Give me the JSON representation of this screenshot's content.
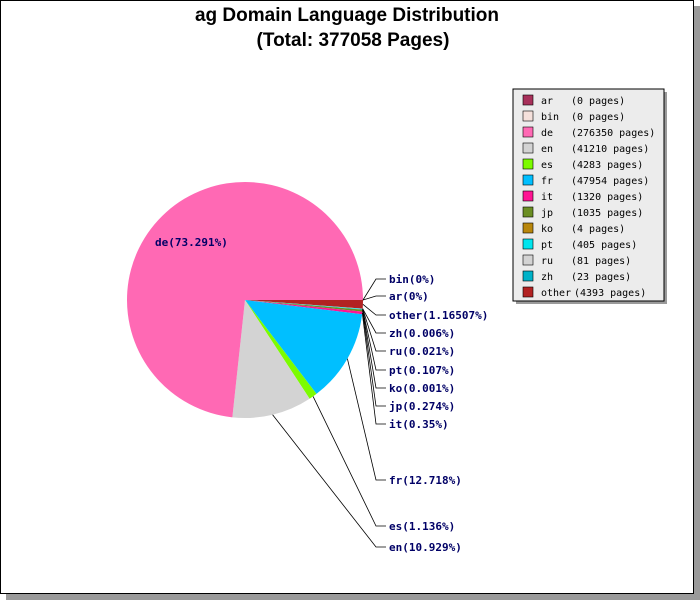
{
  "chart_data": {
    "type": "pie",
    "title": "ag Domain Language Distribution",
    "subtitle": "(Total: 377058 Pages)",
    "legend_placement": "right",
    "slices": [
      {
        "code": "ar",
        "pages": 0,
        "pages_label": "(0 pages)",
        "label": "ar(0%)",
        "color": "#a8305a"
      },
      {
        "code": "bin",
        "pages": 0,
        "pages_label": "(0 pages)",
        "label": "bin(0%)",
        "color": "#f5e1dc"
      },
      {
        "code": "de",
        "pages": 276350,
        "pages_label": "(276350 pages)",
        "label": "de(73.291%)",
        "color": "#ff69b4"
      },
      {
        "code": "en",
        "pages": 41210,
        "pages_label": "(41210 pages)",
        "label": "en(10.929%)",
        "color": "#d3d3d3"
      },
      {
        "code": "es",
        "pages": 4283,
        "pages_label": "(4283 pages)",
        "label": "es(1.136%)",
        "color": "#7cfc00"
      },
      {
        "code": "fr",
        "pages": 47954,
        "pages_label": "(47954 pages)",
        "label": "fr(12.718%)",
        "color": "#00bfff"
      },
      {
        "code": "it",
        "pages": 1320,
        "pages_label": "(1320 pages)",
        "label": "it(0.35%)",
        "color": "#ff1493"
      },
      {
        "code": "jp",
        "pages": 1035,
        "pages_label": "(1035 pages)",
        "label": "jp(0.274%)",
        "color": "#6b8e23"
      },
      {
        "code": "ko",
        "pages": 4,
        "pages_label": "(4 pages)",
        "label": "ko(0.001%)",
        "color": "#b8860b"
      },
      {
        "code": "pt",
        "pages": 405,
        "pages_label": "(405 pages)",
        "label": "pt(0.107%)",
        "color": "#00e5ee"
      },
      {
        "code": "ru",
        "pages": 81,
        "pages_label": "(81 pages)",
        "label": "ru(0.021%)",
        "color": "#d3d3d3"
      },
      {
        "code": "zh",
        "pages": 23,
        "pages_label": "(23 pages)",
        "label": "zh(0.006%)",
        "color": "#00b2c8"
      },
      {
        "code": "other",
        "pages": 4393,
        "pages_label": "(4393 pages)",
        "label": "other(1.16507%)",
        "color": "#b22222"
      }
    ]
  }
}
